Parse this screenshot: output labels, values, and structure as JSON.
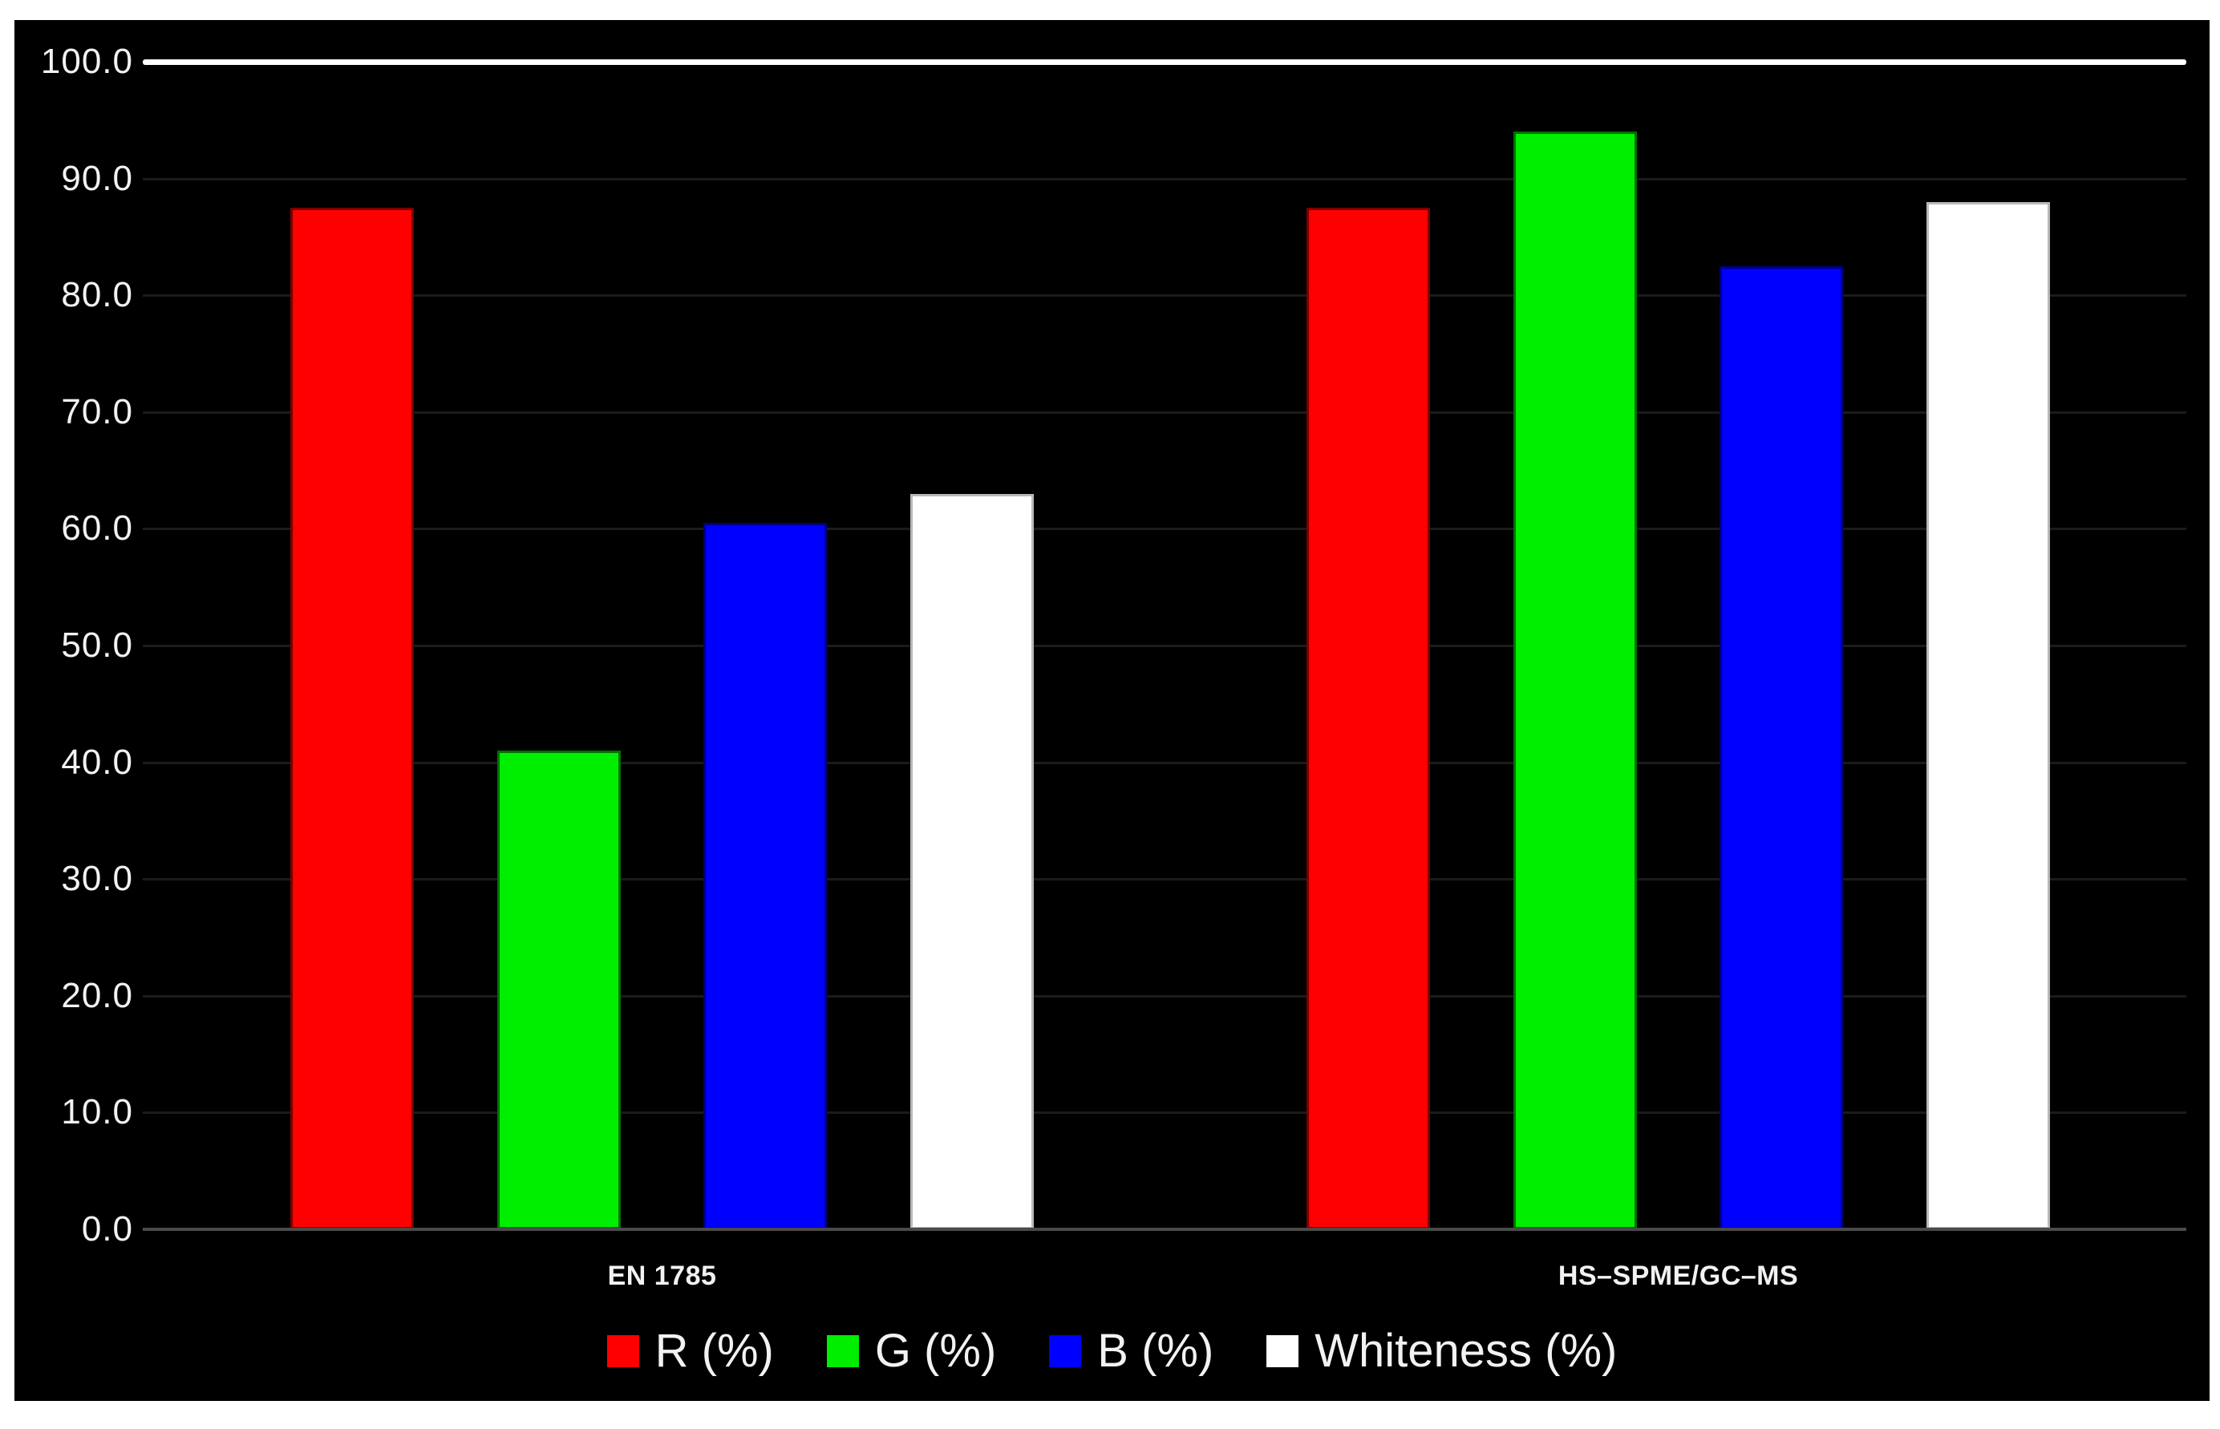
{
  "chart_data": {
    "type": "bar",
    "title": "",
    "categories": [
      "EN 1785",
      "HS–SPME/GC–MS"
    ],
    "series": [
      {
        "name": "R (%)",
        "color": "#ff0000",
        "border": "#7a0000",
        "values": [
          87.5,
          87.5
        ]
      },
      {
        "name": "G (%)",
        "color": "#00ee00",
        "border": "#007200",
        "values": [
          41.0,
          94.0
        ]
      },
      {
        "name": "B (%)",
        "color": "#0000ff",
        "border": "#00007e",
        "values": [
          60.5,
          82.5
        ]
      },
      {
        "name": "Whiteness (%)",
        "color": "#ffffff",
        "border": "#b9b9b9",
        "values": [
          63.0,
          88.0
        ]
      }
    ],
    "ylim": [
      0,
      100
    ],
    "ytick_step": 10,
    "ytick_labels": [
      "0.0",
      "10.0",
      "20.0",
      "30.0",
      "40.0",
      "50.0",
      "60.0",
      "70.0",
      "80.0",
      "90.0",
      "100.0"
    ],
    "xlabel": "",
    "ylabel": "",
    "grid": "horizontal faint dark-gray lines every 10; line at 100.0 drawn thick white",
    "legend_position": "bottom-center"
  },
  "colors": {
    "page_background": "#ffffff",
    "panel_background": "#000000",
    "gridline": "#1b1b1b",
    "gridline_top": "#ffffff",
    "axis_line": "#4a4a4a",
    "text": "#f2f2f2"
  }
}
